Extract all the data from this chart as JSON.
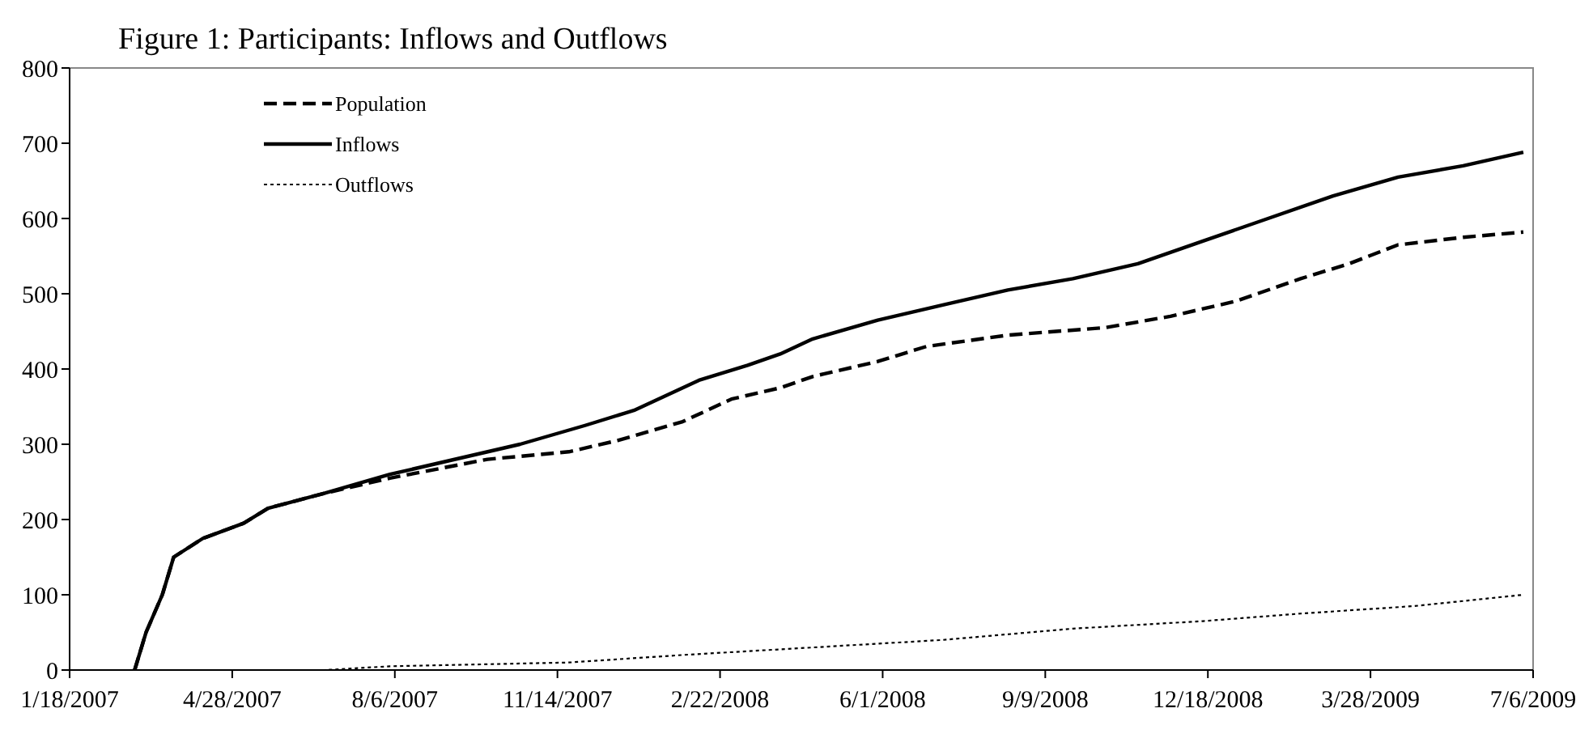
{
  "chart_data": {
    "type": "line",
    "title": "Figure 1: Participants: Inflows and Outflows",
    "xlim": [
      "2007-01-18",
      "2009-07-06"
    ],
    "xticks": [
      {
        "value": "2007-01-18",
        "label": "1/18/2007"
      },
      {
        "value": "2007-04-28",
        "label": "4/28/2007"
      },
      {
        "value": "2007-08-06",
        "label": "8/6/2007"
      },
      {
        "value": "2007-11-14",
        "label": "11/14/2007"
      },
      {
        "value": "2008-02-22",
        "label": "2/22/2008"
      },
      {
        "value": "2008-06-01",
        "label": "6/1/2008"
      },
      {
        "value": "2008-09-09",
        "label": "9/9/2008"
      },
      {
        "value": "2008-12-18",
        "label": "12/18/2008"
      },
      {
        "value": "2009-03-28",
        "label": "3/28/2009"
      },
      {
        "value": "2009-07-06",
        "label": "7/6/2009"
      }
    ],
    "ylim": [
      0,
      800
    ],
    "yticks": [
      0,
      100,
      200,
      300,
      400,
      500,
      600,
      700,
      800
    ],
    "legend": "top left",
    "grid": false,
    "series": [
      {
        "name": "Population",
        "color": "#000000",
        "line_style": "dashed",
        "x": [
          "2007-02-27",
          "2007-03-06",
          "2007-03-16",
          "2007-03-23",
          "2007-04-10",
          "2007-05-05",
          "2007-05-20",
          "2007-06-24",
          "2007-08-03",
          "2007-10-02",
          "2007-11-21",
          "2007-12-21",
          "2008-01-30",
          "2008-02-29",
          "2008-03-30",
          "2008-04-19",
          "2008-05-29",
          "2008-06-28",
          "2008-08-17",
          "2008-10-16",
          "2008-11-25",
          "2009-01-04",
          "2009-02-13",
          "2009-03-15",
          "2009-04-14",
          "2009-05-24",
          "2009-06-30"
        ],
        "values": [
          0,
          50,
          100,
          150,
          175,
          195,
          215,
          235,
          255,
          280,
          290,
          305,
          330,
          360,
          375,
          390,
          410,
          430,
          445,
          455,
          470,
          490,
          520,
          540,
          565,
          575,
          582
        ]
      },
      {
        "name": "Inflows",
        "color": "#000000",
        "line_style": "solid",
        "x": [
          "2007-02-27",
          "2007-03-06",
          "2007-03-16",
          "2007-03-23",
          "2007-04-10",
          "2007-05-05",
          "2007-05-20",
          "2007-06-24",
          "2007-08-03",
          "2007-09-02",
          "2007-10-22",
          "2007-12-01",
          "2007-12-31",
          "2008-02-09",
          "2008-03-10",
          "2008-03-30",
          "2008-04-19",
          "2008-05-29",
          "2008-07-08",
          "2008-08-17",
          "2008-09-26",
          "2008-11-05",
          "2008-12-15",
          "2009-01-24",
          "2009-03-05",
          "2009-04-14",
          "2009-05-24",
          "2009-06-30"
        ],
        "values": [
          0,
          50,
          100,
          150,
          175,
          195,
          215,
          235,
          260,
          275,
          300,
          325,
          345,
          385,
          405,
          420,
          440,
          465,
          485,
          505,
          520,
          540,
          570,
          600,
          630,
          655,
          670,
          688
        ]
      },
      {
        "name": "Outflows",
        "color": "#000000",
        "line_style": "dotted",
        "x": [
          "2007-02-27",
          "2007-06-24",
          "2007-08-03",
          "2007-11-21",
          "2008-01-30",
          "2008-04-19",
          "2008-07-08",
          "2008-09-26",
          "2008-12-15",
          "2009-02-13",
          "2009-04-24",
          "2009-06-30"
        ],
        "values": [
          0,
          0,
          5,
          10,
          20,
          30,
          40,
          55,
          65,
          75,
          85,
          100
        ]
      }
    ]
  }
}
